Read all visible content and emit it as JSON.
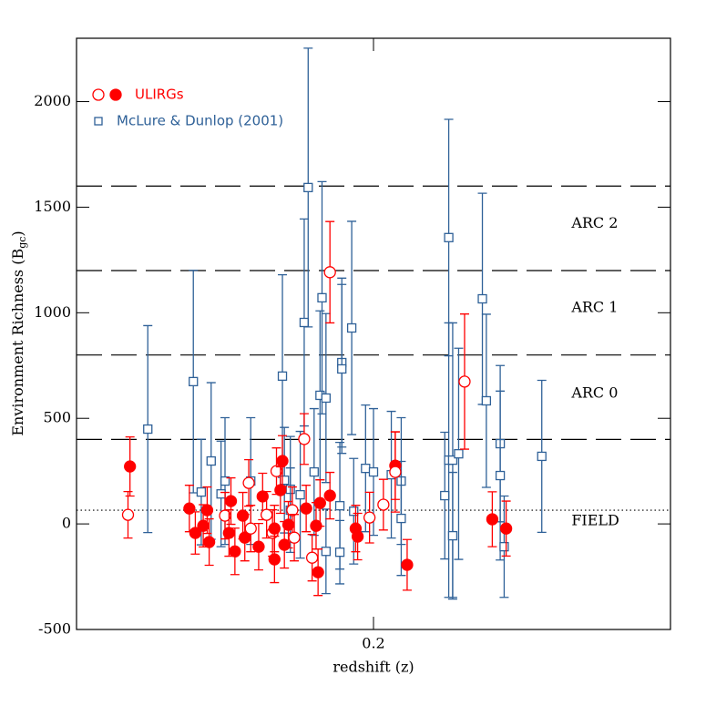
{
  "chart_data": {
    "type": "scatter",
    "xlabel": "redshift (z)",
    "ylabel": "Environment Richness (B",
    "ylabel_sub": "gc",
    "ylabel_end": ")",
    "xlim": [
      0.05,
      0.35
    ],
    "ylim": [
      -500,
      2300
    ],
    "xticks": [
      0.2
    ],
    "yticks": [
      -500,
      0,
      500,
      1000,
      1500,
      2000
    ],
    "hlines": [
      {
        "value": 400,
        "style": "dashed"
      },
      {
        "value": 800,
        "style": "dashed"
      },
      {
        "value": 1200,
        "style": "dashed"
      },
      {
        "value": 1600,
        "style": "dashed"
      },
      {
        "value": 65,
        "style": "dotted"
      }
    ],
    "annotations": [
      {
        "text": "ARC 2",
        "x": 0.3,
        "y": 1421
      },
      {
        "text": "ARC 1",
        "x": 0.3,
        "y": 1023
      },
      {
        "text": "ARC 0",
        "x": 0.3,
        "y": 617
      },
      {
        "text": "FIELD",
        "x": 0.3,
        "y": 13
      }
    ],
    "legend": "upper left",
    "series": [
      {
        "name": "McLure & Dunlop (2001)",
        "color": "#2f6198",
        "marker": "square",
        "x": [
          0.086,
          0.109,
          0.118,
          0.125,
          0.138,
          0.154,
          0.155,
          0.158,
          0.165,
          0.167,
          0.173,
          0.174,
          0.176,
          0.184,
          0.184,
          0.189,
          0.196,
          0.2,
          0.209,
          0.214,
          0.214,
          0.236,
          0.238,
          0.238,
          0.24,
          0.24,
          0.243,
          0.255,
          0.257,
          0.264,
          0.264,
          0.266,
          0.285,
          0.17,
          0.163,
          0.183,
          0.183,
          0.176,
          0.19,
          0.158,
          0.113,
          0.123
        ],
        "values": [
          449,
          674,
          298,
          203,
          203,
          700,
          207,
          164,
          954,
          1593,
          609,
          1071,
          596,
          764,
          734,
          928,
          263,
          246,
          233,
          203,
          26,
          134,
          302,
          1356,
          302,
          -56,
          332,
          1066,
          583,
          380,
          229,
          -108,
          320,
          246,
          138,
          86,
          -134,
          -130,
          60,
          65,
          151,
          142
        ],
        "errors": [
          490,
          527,
          371,
          300,
          300,
          480,
          250,
          250,
          490,
          660,
          400,
          550,
          400,
          400,
          400,
          505,
          300,
          300,
          300,
          300,
          270,
          300,
          650,
          560,
          650,
          300,
          500,
          500,
          410,
          370,
          400,
          240,
          360,
          300,
          300,
          300,
          150,
          200,
          250,
          200,
          250,
          250
        ]
      },
      {
        "name": "ULIRGs",
        "color": "#ff0000",
        "marker": "circle",
        "x": [
          0.077,
          0.076,
          0.107,
          0.11,
          0.114,
          0.116,
          0.117,
          0.125,
          0.127,
          0.128,
          0.13,
          0.134,
          0.135,
          0.137,
          0.138,
          0.142,
          0.144,
          0.146,
          0.149,
          0.15,
          0.15,
          0.151,
          0.153,
          0.154,
          0.155,
          0.157,
          0.159,
          0.16,
          0.165,
          0.166,
          0.169,
          0.171,
          0.172,
          0.173,
          0.178,
          0.178,
          0.191,
          0.192,
          0.198,
          0.205,
          0.211,
          0.211,
          0.217,
          0.246,
          0.26,
          0.267
        ],
        "values": [
          272,
          43,
          73,
          -43,
          -9,
          65,
          -86,
          39,
          -43,
          108,
          -130,
          39,
          -65,
          194,
          -22,
          -108,
          130,
          43,
          -43,
          -168,
          -22,
          250,
          160,
          298,
          -99,
          -4,
          65,
          -65,
          402,
          73,
          -160,
          -9,
          -229,
          99,
          1192,
          134,
          -22,
          -60,
          30,
          91,
          276,
          246,
          -194,
          674,
          22,
          -22
        ],
        "errors": [
          140,
          110,
          110,
          100,
          100,
          110,
          110,
          110,
          110,
          110,
          110,
          110,
          110,
          110,
          110,
          110,
          110,
          110,
          110,
          110,
          110,
          110,
          110,
          120,
          110,
          110,
          110,
          110,
          120,
          110,
          110,
          110,
          110,
          110,
          240,
          110,
          110,
          110,
          120,
          120,
          160,
          190,
          120,
          320,
          130,
          130
        ],
        "filled": [
          true,
          false,
          true,
          true,
          true,
          true,
          true,
          false,
          true,
          true,
          true,
          true,
          true,
          false,
          false,
          true,
          true,
          false,
          false,
          true,
          true,
          false,
          true,
          true,
          true,
          true,
          false,
          false,
          false,
          true,
          false,
          true,
          true,
          true,
          false,
          true,
          true,
          true,
          false,
          false,
          true,
          false,
          true,
          false,
          true,
          true
        ]
      }
    ]
  }
}
